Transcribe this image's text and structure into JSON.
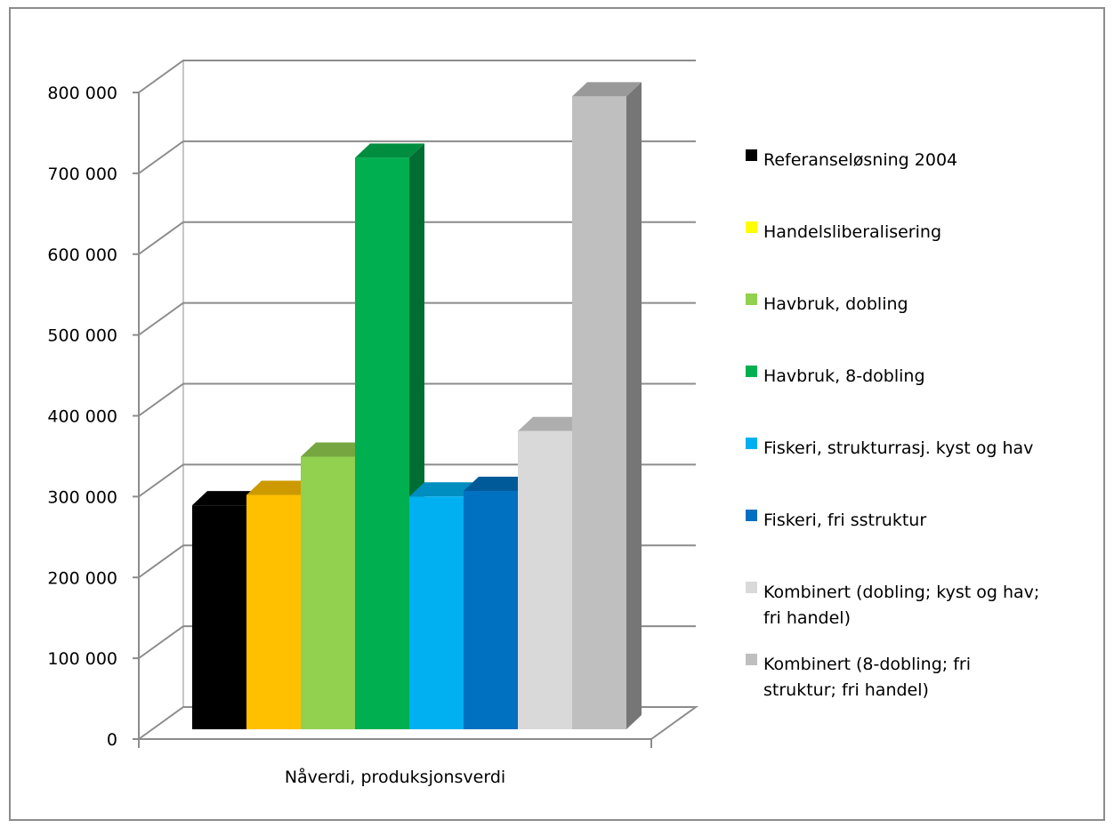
{
  "chart_data": {
    "type": "bar",
    "title": "",
    "xlabel": "",
    "ylabel": "",
    "categories": [
      "Nåverdi, produksjonsverdi"
    ],
    "ylim": [
      0,
      800000
    ],
    "ytick_values": [
      0,
      100000,
      200000,
      300000,
      400000,
      500000,
      600000,
      700000,
      800000
    ],
    "ytick_labels": [
      "0",
      "100 000",
      "200 000",
      "300 000",
      "400 000",
      "500 000",
      "600 000",
      "700 000",
      "800 000"
    ],
    "grid": true,
    "three_d": true,
    "legend_position": "right",
    "series": [
      {
        "name": "Referanseløsning 2004",
        "values": [
          281000
        ],
        "color": "#000000",
        "legend_color": "#000000"
      },
      {
        "name": "Handelsliberalisering",
        "values": [
          294000
        ],
        "color": "#ffc000",
        "legend_color": "#ffff00"
      },
      {
        "name": "Havbruk, dobling",
        "values": [
          342000
        ],
        "color": "#92d050",
        "legend_color": "#92d050"
      },
      {
        "name": "Havbruk, 8-dobling",
        "values": [
          717000
        ],
        "color": "#00b050",
        "legend_color": "#00b050"
      },
      {
        "name": "Fiskeri, strukturrasj. kyst og hav",
        "values": [
          292000
        ],
        "color": "#00b0f0",
        "legend_color": "#00b0f0"
      },
      {
        "name": "Fiskeri, fri sstruktur",
        "values": [
          299000
        ],
        "color": "#0070c0",
        "legend_color": "#0070c0"
      },
      {
        "name": "Kombinert (dobling; kyst og hav; fri handel)",
        "values": [
          374000
        ],
        "color": "#d9d9d9",
        "legend_color": "#d9d9d9"
      },
      {
        "name": "Kombinert (8-dobling; fri struktur; fri handel)",
        "values": [
          794000
        ],
        "color": "#bfbfbf",
        "legend_color": "#bfbfbf"
      }
    ]
  }
}
